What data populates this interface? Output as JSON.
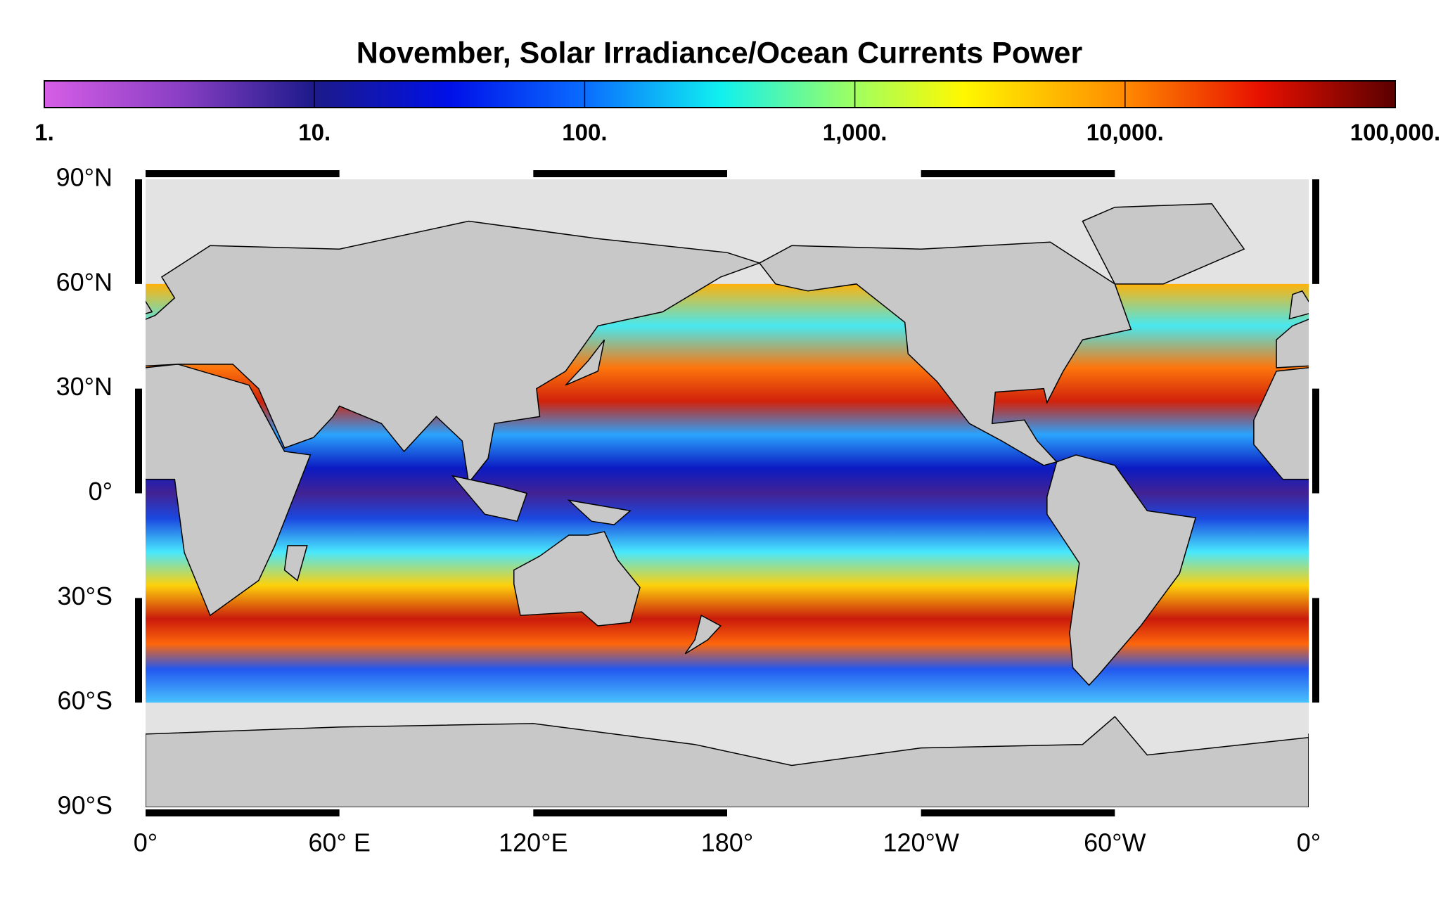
{
  "title": "November, Solar Irradiance/Ocean Currents Power",
  "colorbar": {
    "lim": [
      1,
      100000
    ],
    "log": true,
    "ticks": [
      {
        "value": 1,
        "label": "1."
      },
      {
        "value": 10,
        "label": "10."
      },
      {
        "value": 100,
        "label": "100."
      },
      {
        "value": 1000,
        "label": "1,000."
      },
      {
        "value": 10000,
        "label": "10,000."
      },
      {
        "value": 100000,
        "label": "100,000."
      }
    ]
  },
  "map": {
    "latlim": [
      -90,
      90
    ],
    "lonlim": [
      0,
      360
    ],
    "lat_ticks": [
      {
        "value": 90,
        "label": "90°N"
      },
      {
        "value": 60,
        "label": "60°N"
      },
      {
        "value": 30,
        "label": "30°N"
      },
      {
        "value": 0,
        "label": "0°"
      },
      {
        "value": -30,
        "label": "30°S"
      },
      {
        "value": -60,
        "label": "60°S"
      },
      {
        "value": -90,
        "label": "90°S"
      }
    ],
    "lon_ticks": [
      {
        "value": 0,
        "label": "0°"
      },
      {
        "value": 60,
        "label": "60° E"
      },
      {
        "value": 120,
        "label": "120°E"
      },
      {
        "value": 180,
        "label": "180°"
      },
      {
        "value": 240,
        "label": "120°W"
      },
      {
        "value": 300,
        "label": "60°W"
      },
      {
        "value": 360,
        "label": "0°"
      }
    ]
  }
}
